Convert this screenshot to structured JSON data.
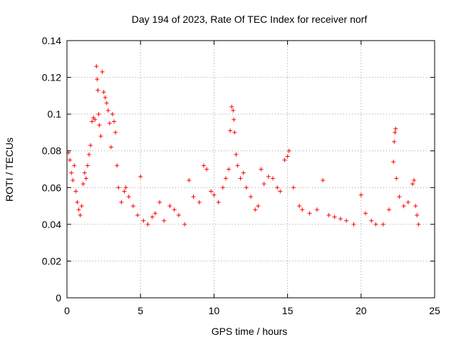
{
  "chart_data": {
    "type": "scatter",
    "title": "Day 194 of 2023, Rate Of TEC Index for receiver norf",
    "xlabel": "GPS time / hours",
    "ylabel": "ROTI / TECUs",
    "xlim": [
      0,
      25
    ],
    "ylim": [
      0,
      0.14
    ],
    "xticks": [
      0,
      5,
      10,
      15,
      20,
      25
    ],
    "xtick_labels": [
      "0",
      "5",
      "10",
      "15",
      "20",
      "25"
    ],
    "yticks": [
      0,
      0.02,
      0.04,
      0.06,
      0.08,
      0.1,
      0.12,
      0.14
    ],
    "ytick_labels": [
      "0",
      "0.02",
      "0.04",
      "0.06",
      "0.08",
      "0.1",
      "0.12",
      "0.14"
    ],
    "grid": true,
    "marker": "+",
    "color": "#ff0000",
    "series": [
      {
        "points": [
          [
            0.1,
            0.079
          ],
          [
            0.2,
            0.075
          ],
          [
            0.3,
            0.068
          ],
          [
            0.4,
            0.064
          ],
          [
            0.5,
            0.072
          ],
          [
            0.6,
            0.058
          ],
          [
            0.7,
            0.052
          ],
          [
            0.8,
            0.048
          ],
          [
            0.9,
            0.045
          ],
          [
            1.0,
            0.05
          ],
          [
            1.1,
            0.062
          ],
          [
            1.2,
            0.068
          ],
          [
            1.3,
            0.065
          ],
          [
            1.4,
            0.072
          ],
          [
            1.5,
            0.078
          ],
          [
            1.6,
            0.083
          ],
          [
            1.7,
            0.096
          ],
          [
            1.8,
            0.098
          ],
          [
            1.9,
            0.097
          ],
          [
            2.0,
            0.126
          ],
          [
            2.05,
            0.119
          ],
          [
            2.1,
            0.113
          ],
          [
            2.15,
            0.1
          ],
          [
            2.2,
            0.094
          ],
          [
            2.3,
            0.088
          ],
          [
            2.4,
            0.123
          ],
          [
            2.5,
            0.112
          ],
          [
            2.6,
            0.109
          ],
          [
            2.7,
            0.106
          ],
          [
            2.8,
            0.102
          ],
          [
            2.9,
            0.095
          ],
          [
            3.0,
            0.082
          ],
          [
            3.1,
            0.1
          ],
          [
            3.2,
            0.096
          ],
          [
            3.3,
            0.09
          ],
          [
            3.4,
            0.072
          ],
          [
            3.5,
            0.06
          ],
          [
            3.7,
            0.052
          ],
          [
            3.9,
            0.058
          ],
          [
            4.0,
            0.06
          ],
          [
            4.2,
            0.055
          ],
          [
            4.5,
            0.05
          ],
          [
            4.8,
            0.045
          ],
          [
            5.0,
            0.066
          ],
          [
            5.2,
            0.042
          ],
          [
            5.5,
            0.04
          ],
          [
            5.8,
            0.044
          ],
          [
            6.0,
            0.046
          ],
          [
            6.3,
            0.052
          ],
          [
            6.6,
            0.042
          ],
          [
            7.0,
            0.05
          ],
          [
            7.3,
            0.048
          ],
          [
            7.6,
            0.045
          ],
          [
            8.0,
            0.04
          ],
          [
            8.3,
            0.064
          ],
          [
            8.6,
            0.055
          ],
          [
            9.0,
            0.052
          ],
          [
            9.3,
            0.072
          ],
          [
            9.5,
            0.07
          ],
          [
            9.8,
            0.058
          ],
          [
            10.0,
            0.056
          ],
          [
            10.3,
            0.052
          ],
          [
            10.6,
            0.06
          ],
          [
            10.8,
            0.065
          ],
          [
            11.0,
            0.07
          ],
          [
            11.1,
            0.091
          ],
          [
            11.2,
            0.104
          ],
          [
            11.3,
            0.102
          ],
          [
            11.35,
            0.097
          ],
          [
            11.4,
            0.09
          ],
          [
            11.5,
            0.078
          ],
          [
            11.6,
            0.072
          ],
          [
            11.8,
            0.065
          ],
          [
            12.0,
            0.068
          ],
          [
            12.2,
            0.06
          ],
          [
            12.5,
            0.055
          ],
          [
            12.8,
            0.048
          ],
          [
            13.0,
            0.05
          ],
          [
            13.2,
            0.07
          ],
          [
            13.4,
            0.062
          ],
          [
            13.7,
            0.066
          ],
          [
            14.0,
            0.065
          ],
          [
            14.3,
            0.06
          ],
          [
            14.5,
            0.058
          ],
          [
            14.8,
            0.075
          ],
          [
            15.0,
            0.077
          ],
          [
            15.1,
            0.08
          ],
          [
            15.4,
            0.06
          ],
          [
            15.8,
            0.05
          ],
          [
            16.0,
            0.048
          ],
          [
            16.5,
            0.046
          ],
          [
            17.0,
            0.048
          ],
          [
            17.4,
            0.064
          ],
          [
            17.8,
            0.045
          ],
          [
            18.2,
            0.044
          ],
          [
            18.6,
            0.043
          ],
          [
            19.0,
            0.042
          ],
          [
            19.5,
            0.04
          ],
          [
            20.0,
            0.056
          ],
          [
            20.3,
            0.046
          ],
          [
            20.7,
            0.042
          ],
          [
            21.0,
            0.04
          ],
          [
            21.5,
            0.04
          ],
          [
            21.9,
            0.048
          ],
          [
            22.2,
            0.074
          ],
          [
            22.25,
            0.085
          ],
          [
            22.3,
            0.09
          ],
          [
            22.35,
            0.092
          ],
          [
            22.4,
            0.065
          ],
          [
            22.6,
            0.055
          ],
          [
            22.9,
            0.05
          ],
          [
            23.2,
            0.052
          ],
          [
            23.5,
            0.062
          ],
          [
            23.6,
            0.064
          ],
          [
            23.7,
            0.05
          ],
          [
            23.8,
            0.045
          ],
          [
            23.9,
            0.04
          ]
        ]
      }
    ]
  }
}
